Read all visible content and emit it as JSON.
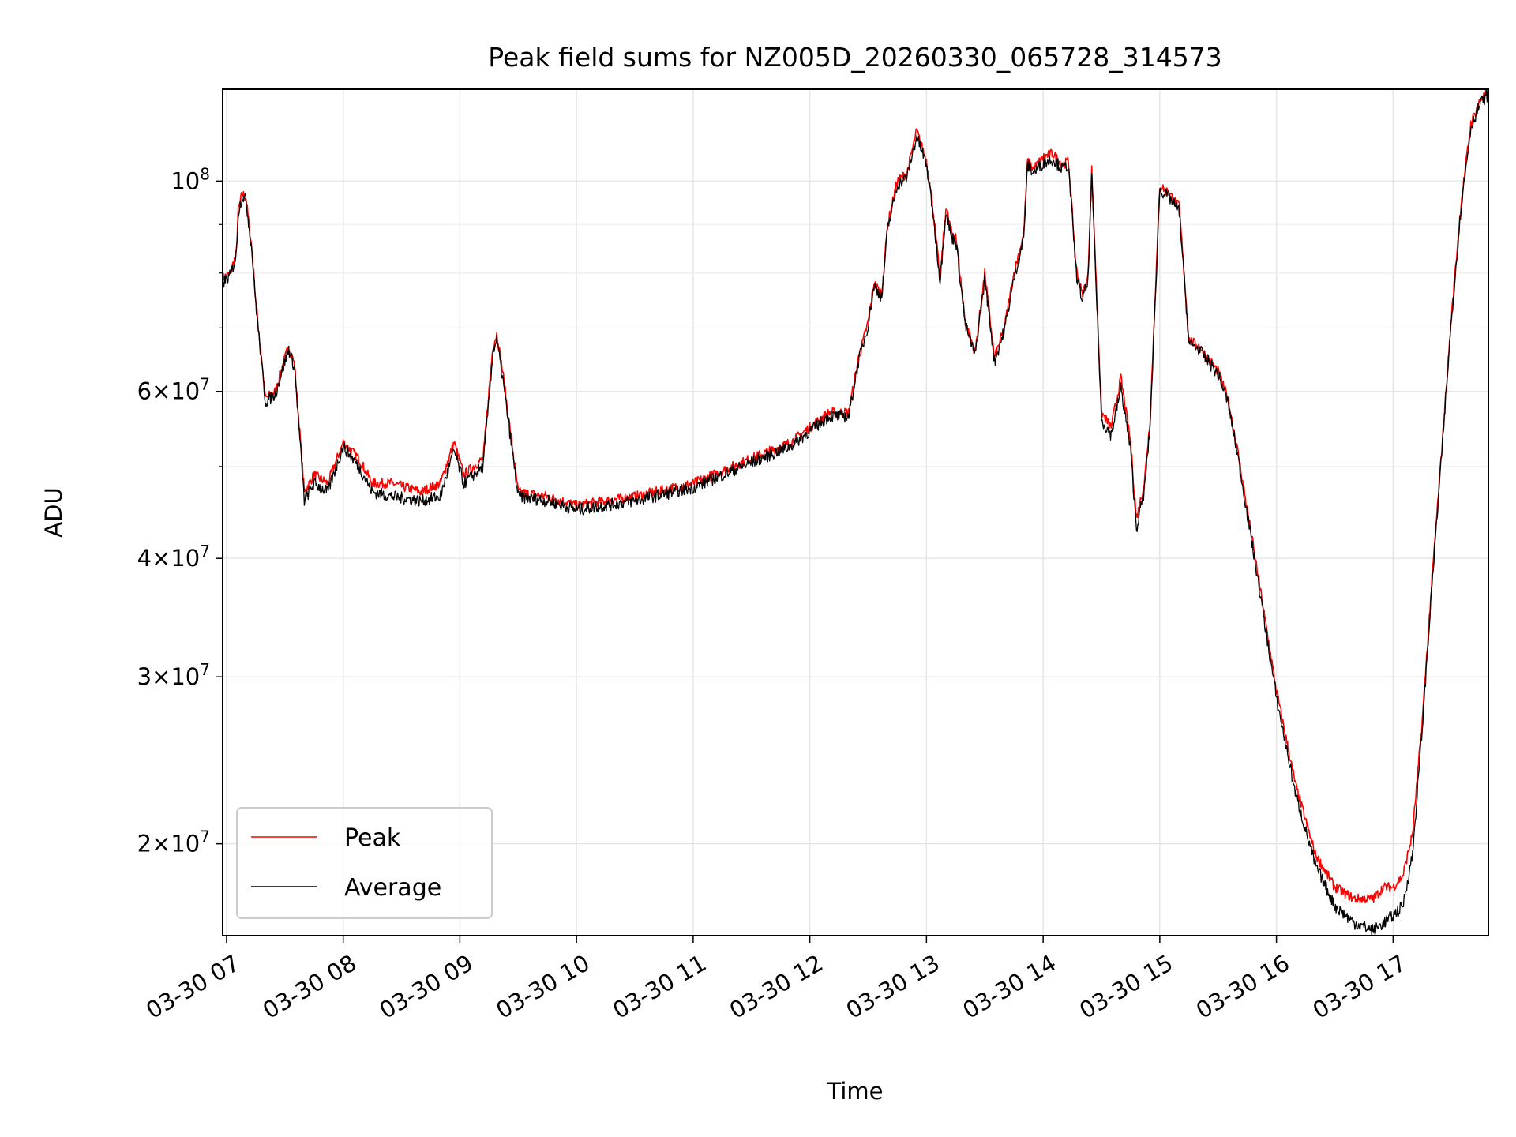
{
  "chart_data": {
    "type": "line",
    "title": "Peak field sums for NZ005D_20260330_065728_314573",
    "xlabel": "Time",
    "ylabel": "ADU",
    "yscale": "log",
    "ylim": [
      16000000,
      125000000
    ],
    "xlim": [
      "2026-03-30 06:58",
      "2026-03-30 17:49"
    ],
    "grid": true,
    "legend_position": "lower-left",
    "x_tick_labels": [
      "03-30 07",
      "03-30 08",
      "03-30 09",
      "03-30 10",
      "03-30 11",
      "03-30 12",
      "03-30 13",
      "03-30 14",
      "03-30 15",
      "03-30 16",
      "03-30 17"
    ],
    "x_ticks": [
      "2026-03-30 07:00",
      "2026-03-30 08:00",
      "2026-03-30 09:00",
      "2026-03-30 10:00",
      "2026-03-30 11:00",
      "2026-03-30 12:00",
      "2026-03-30 13:00",
      "2026-03-30 14:00",
      "2026-03-30 15:00",
      "2026-03-30 16:00",
      "2026-03-30 17:00"
    ],
    "y_major_ticks": [
      {
        "value": 20000000,
        "mantissa": "2",
        "exponent": "7"
      },
      {
        "value": 30000000,
        "mantissa": "3",
        "exponent": "7"
      },
      {
        "value": 40000000,
        "mantissa": "4",
        "exponent": "7"
      },
      {
        "value": 60000000,
        "mantissa": "6",
        "exponent": "7"
      },
      {
        "value": 100000000,
        "mantissa": "",
        "exponent": "8"
      }
    ],
    "y_minor_ticks": [
      50000000,
      70000000,
      80000000,
      90000000
    ],
    "x": [
      "2026-03-30 06:58",
      "2026-03-30 07:02",
      "2026-03-30 07:05",
      "2026-03-30 07:06",
      "2026-03-30 07:08",
      "2026-03-30 07:10",
      "2026-03-30 07:13",
      "2026-03-30 07:15",
      "2026-03-30 07:17",
      "2026-03-30 07:20",
      "2026-03-30 07:25",
      "2026-03-30 07:28",
      "2026-03-30 07:32",
      "2026-03-30 07:35",
      "2026-03-30 07:40",
      "2026-03-30 07:45",
      "2026-03-30 07:52",
      "2026-03-30 08:00",
      "2026-03-30 08:08",
      "2026-03-30 08:15",
      "2026-03-30 08:25",
      "2026-03-30 08:40",
      "2026-03-30 08:50",
      "2026-03-30 08:57",
      "2026-03-30 09:02",
      "2026-03-30 09:07",
      "2026-03-30 09:12",
      "2026-03-30 09:17",
      "2026-03-30 09:19",
      "2026-03-30 09:22",
      "2026-03-30 09:30",
      "2026-03-30 09:45",
      "2026-03-30 10:00",
      "2026-03-30 10:30",
      "2026-03-30 11:00",
      "2026-03-30 11:30",
      "2026-03-30 11:50",
      "2026-03-30 12:00",
      "2026-03-30 12:10",
      "2026-03-30 12:20",
      "2026-03-30 12:25",
      "2026-03-30 12:30",
      "2026-03-30 12:33",
      "2026-03-30 12:37",
      "2026-03-30 12:40",
      "2026-03-30 12:45",
      "2026-03-30 12:50",
      "2026-03-30 12:55",
      "2026-03-30 13:00",
      "2026-03-30 13:03",
      "2026-03-30 13:07",
      "2026-03-30 13:10",
      "2026-03-30 13:13",
      "2026-03-30 13:15",
      "2026-03-30 13:20",
      "2026-03-30 13:25",
      "2026-03-30 13:30",
      "2026-03-30 13:35",
      "2026-03-30 13:40",
      "2026-03-30 13:45",
      "2026-03-30 13:50",
      "2026-03-30 13:52",
      "2026-03-30 13:55",
      "2026-03-30 14:00",
      "2026-03-30 14:05",
      "2026-03-30 14:10",
      "2026-03-30 14:13",
      "2026-03-30 14:17",
      "2026-03-30 14:20",
      "2026-03-30 14:23",
      "2026-03-30 14:25",
      "2026-03-30 14:30",
      "2026-03-30 14:35",
      "2026-03-30 14:40",
      "2026-03-30 14:45",
      "2026-03-30 14:48",
      "2026-03-30 14:52",
      "2026-03-30 14:55",
      "2026-03-30 15:00",
      "2026-03-30 15:05",
      "2026-03-30 15:10",
      "2026-03-30 15:15",
      "2026-03-30 15:20",
      "2026-03-30 15:25",
      "2026-03-30 15:30",
      "2026-03-30 15:35",
      "2026-03-30 15:40",
      "2026-03-30 15:50",
      "2026-03-30 16:00",
      "2026-03-30 16:10",
      "2026-03-30 16:20",
      "2026-03-30 16:30",
      "2026-03-30 16:40",
      "2026-03-30 16:50",
      "2026-03-30 16:55",
      "2026-03-30 17:00",
      "2026-03-30 17:05",
      "2026-03-30 17:10",
      "2026-03-30 17:15",
      "2026-03-30 17:20",
      "2026-03-30 17:25",
      "2026-03-30 17:30",
      "2026-03-30 17:35",
      "2026-03-30 17:40",
      "2026-03-30 17:45",
      "2026-03-30 17:49"
    ],
    "series": [
      {
        "name": "Peak",
        "color": "#ff0000",
        "values": [
          79000000,
          80000000,
          84000000,
          93000000,
          97000000,
          96000000,
          85000000,
          75000000,
          68000000,
          59000000,
          60000000,
          63000000,
          67000000,
          64000000,
          47000000,
          49000000,
          48000000,
          53000000,
          51000000,
          48000000,
          48000000,
          47000000,
          48000000,
          53000000,
          49000000,
          50000000,
          51000000,
          67000000,
          69000000,
          63000000,
          47000000,
          46500000,
          45500000,
          46500000,
          48000000,
          51000000,
          53000000,
          55000000,
          57000000,
          57000000,
          65000000,
          71000000,
          78000000,
          76000000,
          90000000,
          100000000,
          102000000,
          113000000,
          105000000,
          95000000,
          79000000,
          94000000,
          88000000,
          88000000,
          71000000,
          66000000,
          80000000,
          65000000,
          70000000,
          80000000,
          88000000,
          105000000,
          103000000,
          106000000,
          107000000,
          104000000,
          105000000,
          81000000,
          76000000,
          79000000,
          103000000,
          57000000,
          55000000,
          62000000,
          53000000,
          44000000,
          48000000,
          56000000,
          99000000,
          97000000,
          94000000,
          68000000,
          67000000,
          65000000,
          63000000,
          59000000,
          52000000,
          39000000,
          29000000,
          23000000,
          19500000,
          18000000,
          17500000,
          17500000,
          18000000,
          18000000,
          18500000,
          20500000,
          27000000,
          38000000,
          52000000,
          72000000,
          95000000,
          115000000,
          122000000,
          124000000
        ]
      },
      {
        "name": "Average",
        "color": "#000000",
        "values": [
          78000000,
          79500000,
          83500000,
          92500000,
          96500000,
          95500000,
          84500000,
          74500000,
          67500000,
          58500000,
          59500000,
          62500000,
          66500000,
          63500000,
          46000000,
          48000000,
          47000000,
          52500000,
          50000000,
          47000000,
          46500000,
          46000000,
          46500000,
          52000000,
          48000000,
          49000000,
          50000000,
          66000000,
          68000000,
          62000000,
          46500000,
          46000000,
          45000000,
          46000000,
          47500000,
          50500000,
          52500000,
          54500000,
          56500000,
          56500000,
          64500000,
          70500000,
          77500000,
          75500000,
          89000000,
          99000000,
          101000000,
          111500000,
          104000000,
          94000000,
          78500000,
          93000000,
          87000000,
          87000000,
          70500000,
          65500000,
          79000000,
          64500000,
          69500000,
          79000000,
          87000000,
          104000000,
          102000000,
          104500000,
          105500000,
          103000000,
          104000000,
          80000000,
          75000000,
          78000000,
          101000000,
          56000000,
          54000000,
          60500000,
          52000000,
          43000000,
          47000000,
          55000000,
          98000000,
          96000000,
          93000000,
          67500000,
          66500000,
          64500000,
          62500000,
          58500000,
          51500000,
          38500000,
          28500000,
          22500000,
          19000000,
          17200000,
          16500000,
          16200000,
          16500000,
          16800000,
          17200000,
          19500000,
          26500000,
          37500000,
          51500000,
          71500000,
          94000000,
          114000000,
          121000000,
          123500000
        ]
      }
    ]
  }
}
